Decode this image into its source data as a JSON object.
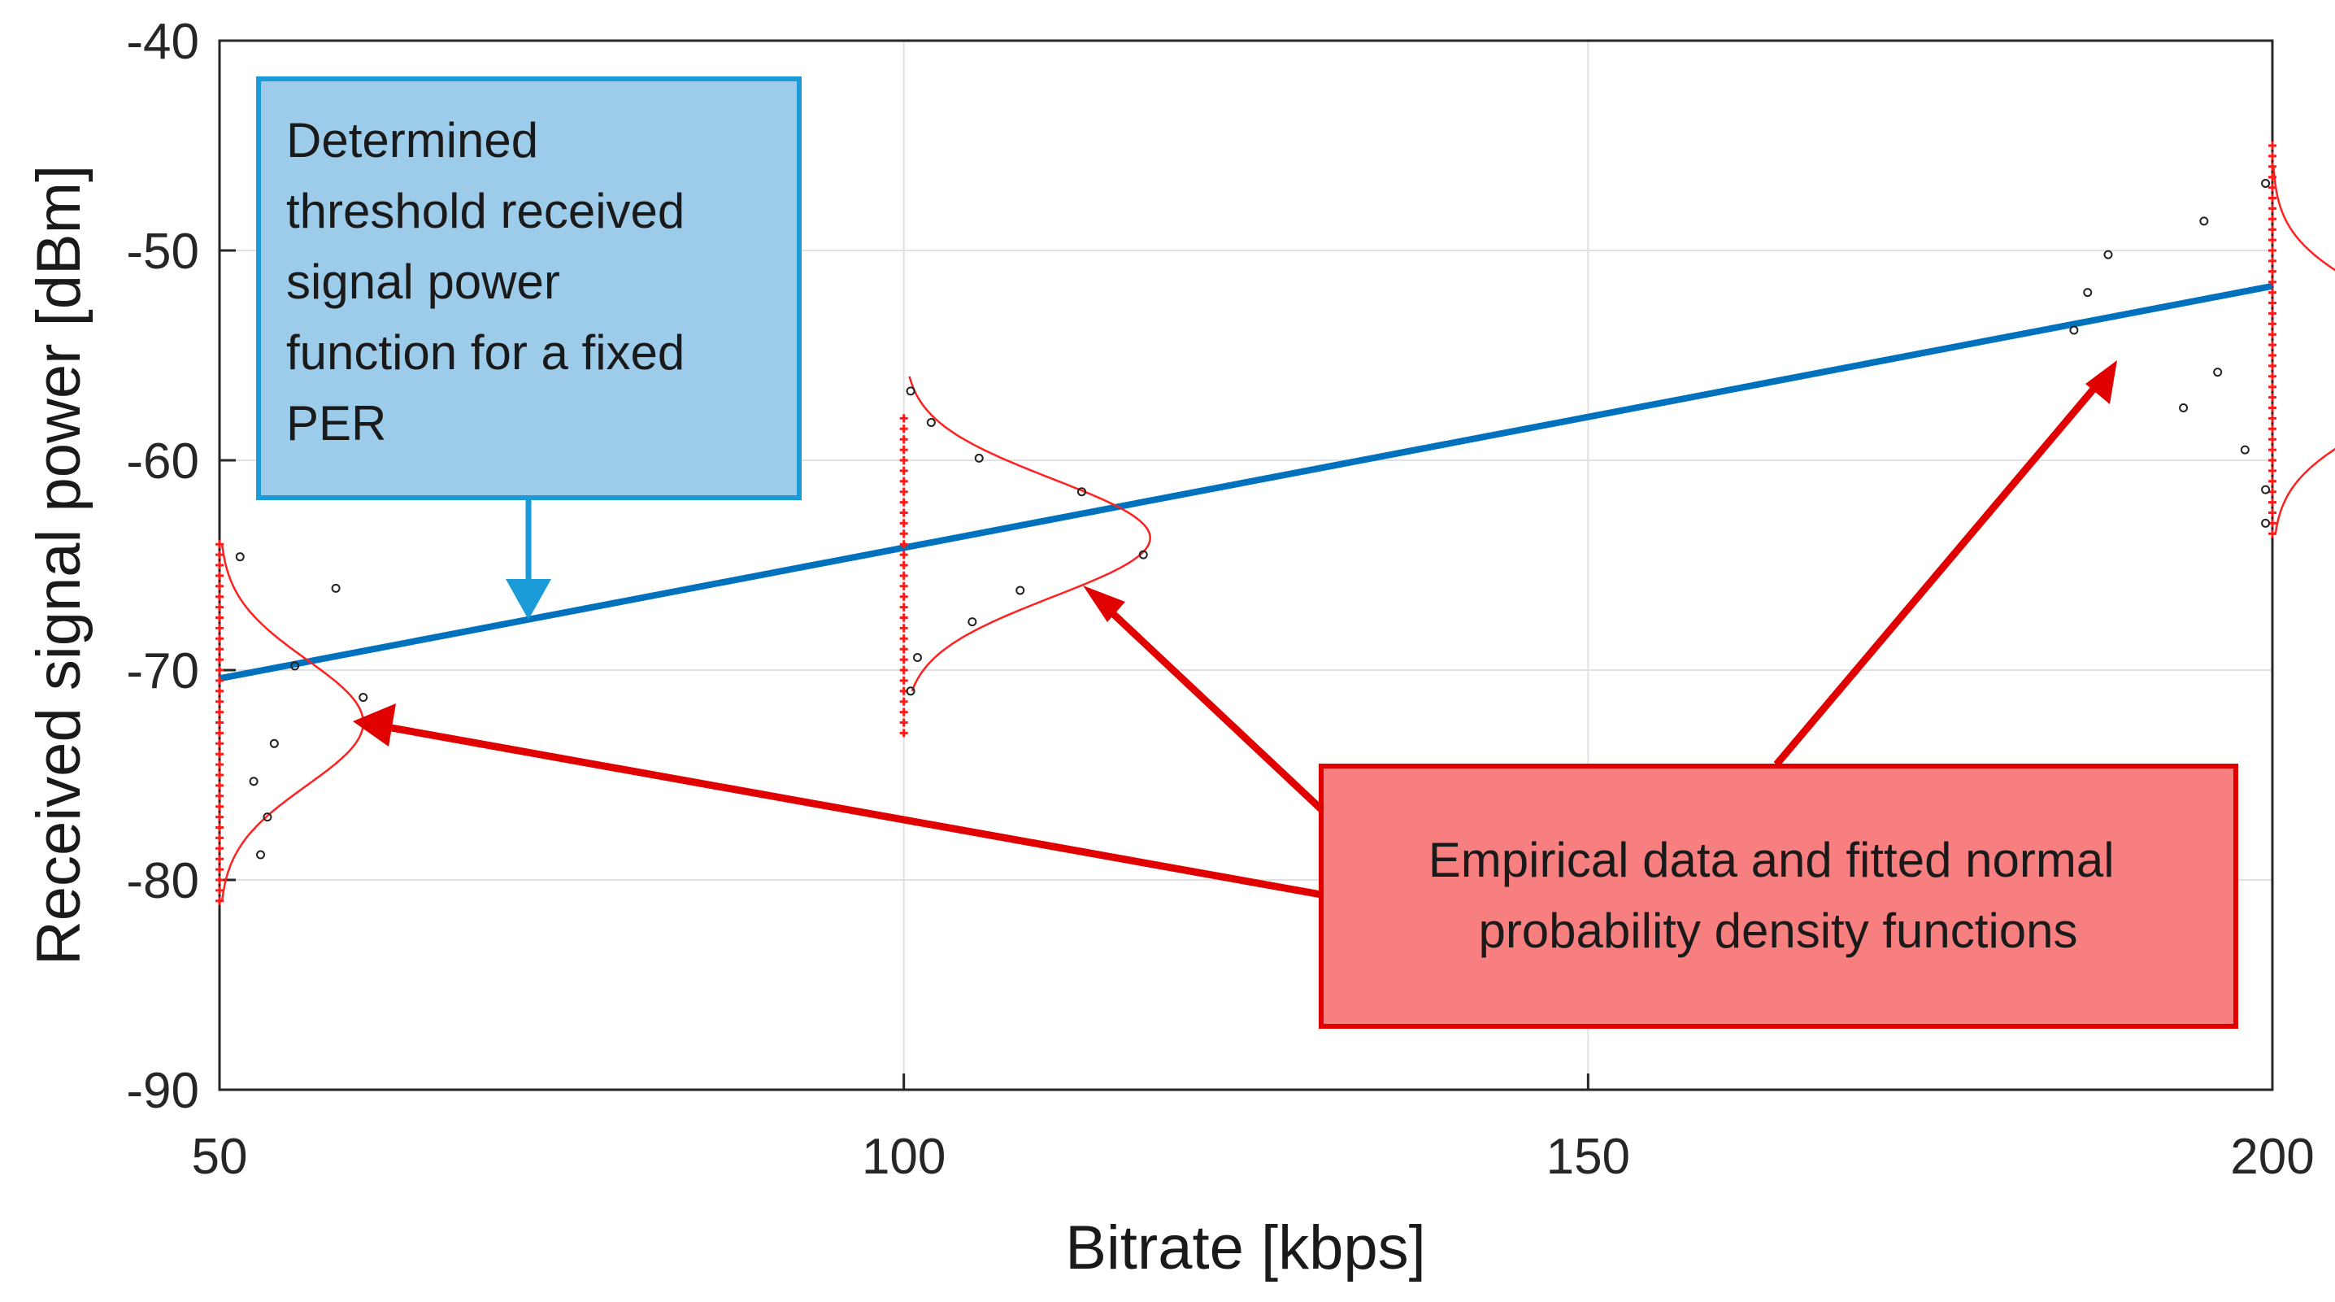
{
  "chart_data": {
    "type": "line",
    "title": "",
    "xlabel": "Bitrate [kbps]",
    "ylabel": "Received signal power [dBm]",
    "xlim": [
      50,
      200
    ],
    "ylim": [
      -90,
      -40
    ],
    "xticks": [
      50,
      100,
      150,
      200
    ],
    "yticks": [
      -90,
      -80,
      -70,
      -60,
      -50,
      -40
    ],
    "grid": true,
    "threshold_line": {
      "name": "Determined threshold received signal power function for a fixed PER",
      "color": "#0072bd",
      "x": [
        50,
        200
      ],
      "y": [
        -70.4,
        -51.7
      ]
    },
    "groups": [
      {
        "bitrate": 50,
        "samples": [
          -81,
          -80.5,
          -80,
          -79.5,
          -79,
          -78.5,
          -78,
          -77.5,
          -77,
          -76.5,
          -76,
          -75.5,
          -75,
          -74.5,
          -74,
          -73.5,
          -73,
          -72.5,
          -72,
          -71.5,
          -71,
          -70.5,
          -70,
          -69.5,
          -69,
          -68.5,
          -68,
          -67.5,
          -67,
          -66.5,
          -66,
          -65.5,
          -65,
          -64.5,
          -64
        ],
        "fit": {
          "mean": -72.5,
          "std": 3.0,
          "peak_kbps": 10.5,
          "y_range": [
            -81,
            -64
          ]
        },
        "points": [
          [
            51.5,
            -64.6
          ],
          [
            55.5,
            -69.8
          ],
          [
            58.5,
            -66.1
          ],
          [
            60.5,
            -71.3
          ],
          [
            54,
            -73.5
          ],
          [
            52.5,
            -75.3
          ],
          [
            53.5,
            -77
          ],
          [
            53,
            -78.8
          ]
        ]
      },
      {
        "bitrate": 100,
        "samples": [
          -73,
          -72.5,
          -72,
          -71.5,
          -71,
          -70.5,
          -70,
          -69.5,
          -69,
          -68.5,
          -68,
          -67.5,
          -67,
          -66.5,
          -66,
          -65.5,
          -65,
          -64.5,
          -64,
          -63.5,
          -63,
          -62.5,
          -62,
          -61.5,
          -61,
          -60.5,
          -60,
          -59.5,
          -59,
          -58.5,
          -58
        ],
        "fit": {
          "mean": -63.7,
          "std": 2.8,
          "peak_kbps": 18,
          "y_range": [
            -71,
            -56
          ]
        },
        "points": [
          [
            100.5,
            -56.7
          ],
          [
            102,
            -58.2
          ],
          [
            105.5,
            -59.9
          ],
          [
            113,
            -61.5
          ],
          [
            117.5,
            -64.5
          ],
          [
            108.5,
            -66.2
          ],
          [
            105,
            -67.7
          ],
          [
            101,
            -69.4
          ],
          [
            100.5,
            -71
          ]
        ]
      },
      {
        "bitrate": 200,
        "samples": [
          -63.5,
          -63,
          -62.5,
          -62,
          -61.5,
          -61,
          -60.5,
          -60,
          -59.5,
          -59,
          -58.5,
          -58,
          -57.5,
          -57,
          -56.5,
          -56,
          -55.5,
          -55,
          -54.5,
          -54,
          -53.5,
          -53,
          -52.5,
          -52,
          -51.5,
          -51,
          -50.5,
          -50,
          -49.5,
          -49,
          -48.5,
          -48,
          -47.5,
          -47,
          -46.5,
          -46,
          -45.5,
          -45
        ],
        "fit": {
          "mean": -55.2,
          "std": 2.9,
          "peak_kbps": 13.5,
          "y_range": [
            -63.5,
            -46
          ]
        },
        "points": [
          [
            199.5,
            -46.8
          ],
          [
            195,
            -48.6
          ],
          [
            188,
            -50.2
          ],
          [
            186.5,
            -52
          ],
          [
            185.5,
            -53.8
          ],
          [
            196,
            -55.8
          ],
          [
            193.5,
            -57.5
          ],
          [
            198,
            -59.5
          ],
          [
            199.5,
            -61.4
          ],
          [
            199.5,
            -63
          ]
        ]
      }
    ],
    "annotations": {
      "threshold_box": {
        "text": "Determined threshold received signal power function for a fixed PER",
        "lines": [
          "Determined",
          "threshold received",
          "signal power",
          "function for a fixed",
          "PER"
        ],
        "fill": "#9dccea",
        "border": "#1a9ad6",
        "arrow_color": "#1a9ad6",
        "arrow_target": [
          72.5,
          -67.5
        ]
      },
      "empirical_box": {
        "text": "Empirical data and fitted normal probability density functions",
        "lines": [
          "Empirical data and fitted normal",
          "probability density functions"
        ],
        "fill": "#f87f7f",
        "border": "#e00000",
        "arrow_color": "#e00000",
        "arrow_targets": [
          [
            60.5,
            -72.5
          ],
          [
            113,
            -66
          ],
          [
            190,
            -55.5
          ]
        ]
      }
    },
    "colors": {
      "samples": "#ff1a1a",
      "fit": "#ff2020",
      "points": "#222222",
      "grid": "#e1e1e1",
      "axes": "#262626"
    }
  }
}
